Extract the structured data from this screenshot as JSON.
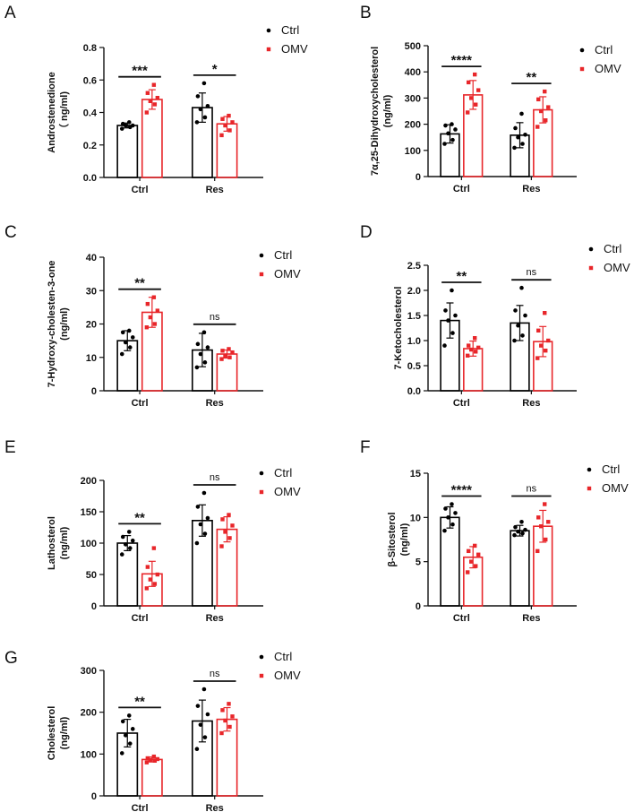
{
  "colors": {
    "ctrl": "#000000",
    "omv": "#e8262a"
  },
  "chart_data": [
    {
      "type": "bar",
      "panel": "A",
      "ylabel": [
        "Androstenedione",
        "（ ng/ml)"
      ],
      "ylim": [
        0,
        0.8
      ],
      "yticks": [
        "0.0",
        "0.2",
        "0.4",
        "0.6",
        "0.8"
      ],
      "categories": [
        "Ctrl",
        "Res"
      ],
      "legend": [
        "Ctrl",
        "OMV"
      ],
      "series": [
        {
          "name": "Ctrl",
          "values": [
            0.32,
            0.43
          ],
          "sd": [
            0.015,
            0.09
          ],
          "points": [
            [
              0.3,
              0.31,
              0.32,
              0.32,
              0.33,
              0.34
            ],
            [
              0.34,
              0.37,
              0.42,
              0.44,
              0.5,
              0.58
            ]
          ]
        },
        {
          "name": "OMV",
          "values": [
            0.48,
            0.33
          ],
          "sd": [
            0.06,
            0.045
          ],
          "points": [
            [
              0.4,
              0.45,
              0.47,
              0.49,
              0.52,
              0.57
            ],
            [
              0.26,
              0.29,
              0.32,
              0.34,
              0.36,
              0.38
            ]
          ]
        }
      ],
      "significance": [
        "***",
        "*"
      ]
    },
    {
      "type": "bar",
      "panel": "B",
      "ylabel": [
        "7α,25-Dihydroxycholesterol",
        "(ng/ml)"
      ],
      "ylim": [
        0,
        500
      ],
      "yticks": [
        "0",
        "100",
        "200",
        "300",
        "400",
        "500"
      ],
      "categories": [
        "Ctrl",
        "Res"
      ],
      "legend": [
        "Ctrl",
        "OMV"
      ],
      "series": [
        {
          "name": "Ctrl",
          "values": [
            163,
            158
          ],
          "sd": [
            35,
            48
          ],
          "points": [
            [
              125,
              140,
              165,
              180,
              195,
              200
            ],
            [
              110,
              125,
              150,
              160,
              185,
              240
            ]
          ]
        },
        {
          "name": "OMV",
          "values": [
            312,
            255
          ],
          "sd": [
            55,
            50
          ],
          "points": [
            [
              245,
              275,
              300,
              330,
              360,
              390
            ],
            [
              190,
              215,
              250,
              265,
              295,
              325
            ]
          ]
        }
      ],
      "significance": [
        "****",
        "**"
      ]
    },
    {
      "type": "bar",
      "panel": "C",
      "ylabel": [
        "7-Hydroxy-cholesten-3-one",
        "(ng/ml)"
      ],
      "ylim": [
        0,
        40
      ],
      "yticks": [
        "0",
        "10",
        "20",
        "30",
        "40"
      ],
      "categories": [
        "Ctrl",
        "Res"
      ],
      "legend": [
        "Ctrl",
        "OMV"
      ],
      "series": [
        {
          "name": "Ctrl",
          "values": [
            15,
            12.2
          ],
          "sd": [
            3,
            5
          ],
          "points": [
            [
              11,
              13,
              14.5,
              16,
              17.5,
              18
            ],
            [
              7,
              8.5,
              11,
              13,
              14,
              17.5
            ]
          ]
        },
        {
          "name": "OMV",
          "values": [
            23.5,
            11
          ],
          "sd": [
            4.5,
            1.2
          ],
          "points": [
            [
              19,
              20,
              22,
              24,
              26,
              28
            ],
            [
              9.5,
              10,
              10.5,
              11.5,
              12,
              12.5
            ]
          ]
        }
      ],
      "significance": [
        "**",
        "ns"
      ]
    },
    {
      "type": "bar",
      "panel": "D",
      "ylabel": [
        "7-Ketocholesterol"
      ],
      "ylim": [
        0,
        2.5
      ],
      "yticks": [
        "0.0",
        "0.5",
        "1.0",
        "1.5",
        "2.0",
        "2.5"
      ],
      "categories": [
        "Ctrl",
        "Res"
      ],
      "legend": [
        "Ctrl",
        "OMV"
      ],
      "series": [
        {
          "name": "Ctrl",
          "values": [
            1.4,
            1.35
          ],
          "sd": [
            0.35,
            0.35
          ],
          "points": [
            [
              0.9,
              1.15,
              1.4,
              1.5,
              1.6,
              2.0
            ],
            [
              1.0,
              1.1,
              1.3,
              1.5,
              1.6,
              2.05
            ]
          ]
        },
        {
          "name": "OMV",
          "values": [
            0.84,
            0.98
          ],
          "sd": [
            0.15,
            0.3
          ],
          "points": [
            [
              0.7,
              0.78,
              0.82,
              0.86,
              0.9,
              1.05
            ],
            [
              0.65,
              0.8,
              0.9,
              1.0,
              1.2,
              1.55
            ]
          ]
        }
      ],
      "significance": [
        "**",
        "ns"
      ]
    },
    {
      "type": "bar",
      "panel": "E",
      "ylabel": [
        "Lathosterol",
        "(ng/ml)"
      ],
      "ylim": [
        0,
        200
      ],
      "yticks": [
        "0",
        "50",
        "100",
        "150",
        "200"
      ],
      "categories": [
        "Ctrl",
        "Res"
      ],
      "legend": [
        "Ctrl",
        "OMV"
      ],
      "series": [
        {
          "name": "Ctrl",
          "values": [
            100,
            136
          ],
          "sd": [
            12,
            25
          ],
          "points": [
            [
              82,
              92,
              98,
              104,
              110,
              118
            ],
            [
              100,
              115,
              130,
              140,
              158,
              180
            ]
          ]
        },
        {
          "name": "OMV",
          "values": [
            51,
            122
          ],
          "sd": [
            20,
            20
          ],
          "points": [
            [
              28,
              35,
              42,
              50,
              62,
              92
            ],
            [
              95,
              108,
              118,
              128,
              138,
              145
            ]
          ]
        }
      ],
      "significance": [
        "**",
        "ns"
      ]
    },
    {
      "type": "bar",
      "panel": "F",
      "ylabel": [
        "β-Sitosterol",
        "(ng/ml)"
      ],
      "ylim": [
        0,
        15
      ],
      "yticks": [
        "0",
        "5",
        "10",
        "15"
      ],
      "categories": [
        "Ctrl",
        "Res"
      ],
      "legend": [
        "Ctrl",
        "OMV"
      ],
      "series": [
        {
          "name": "Ctrl",
          "values": [
            10,
            8.5
          ],
          "sd": [
            1.2,
            0.6
          ],
          "points": [
            [
              8.5,
              9.2,
              10,
              10.5,
              11,
              11.5
            ],
            [
              8,
              8.2,
              8.4,
              8.6,
              8.9,
              9.5
            ]
          ]
        },
        {
          "name": "OMV",
          "values": [
            5.5,
            9
          ],
          "sd": [
            1.2,
            1.8
          ],
          "points": [
            [
              3.8,
              4.5,
              5,
              5.8,
              6.2,
              6.8
            ],
            [
              6.2,
              7.5,
              9,
              9.5,
              10,
              11.5
            ]
          ]
        }
      ],
      "significance": [
        "****",
        "ns"
      ]
    },
    {
      "type": "bar",
      "panel": "G",
      "ylabel": [
        "Cholesterol",
        "(ng/ml)"
      ],
      "ylim": [
        0,
        300
      ],
      "yticks": [
        "0",
        "100",
        "200",
        "300"
      ],
      "categories": [
        "Ctrl",
        "Res"
      ],
      "legend": [
        "Ctrl",
        "OMV"
      ],
      "series": [
        {
          "name": "Ctrl",
          "values": [
            150,
            179
          ],
          "sd": [
            33,
            50
          ],
          "points": [
            [
              102,
              125,
              145,
              160,
              178,
              192
            ],
            [
              112,
              140,
              170,
              195,
              215,
              255
            ]
          ]
        },
        {
          "name": "OMV",
          "values": [
            87,
            183
          ],
          "sd": [
            6,
            28
          ],
          "points": [
            [
              80,
              84,
              86,
              88,
              90,
              94
            ],
            [
              150,
              165,
              180,
              190,
              205,
              220
            ]
          ]
        }
      ],
      "significance": [
        "**",
        "ns"
      ]
    }
  ]
}
